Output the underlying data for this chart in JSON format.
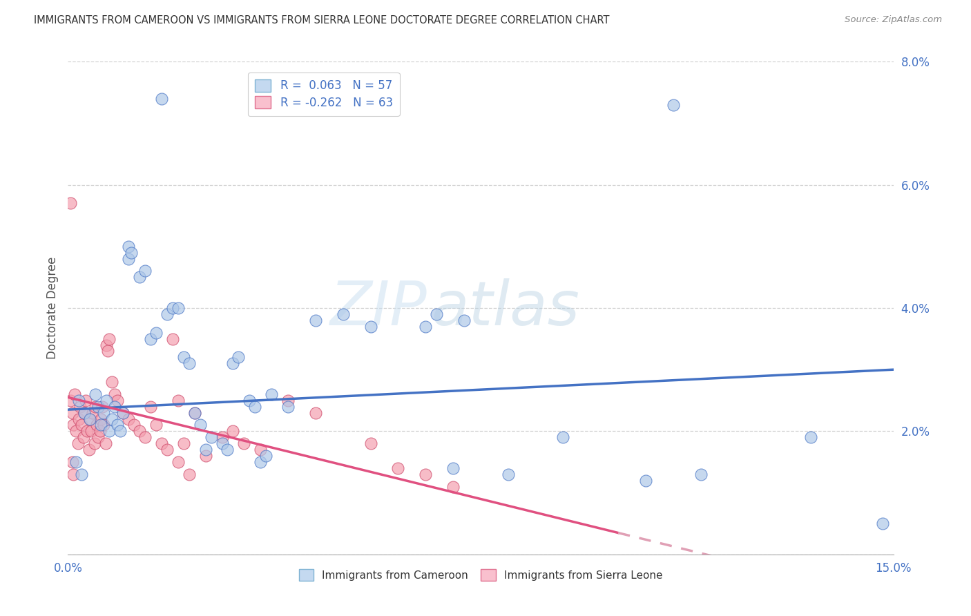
{
  "title": "IMMIGRANTS FROM CAMEROON VS IMMIGRANTS FROM SIERRA LEONE DOCTORATE DEGREE CORRELATION CHART",
  "source": "Source: ZipAtlas.com",
  "ylabel": "Doctorate Degree",
  "xlim": [
    0,
    15
  ],
  "ylim": [
    0,
    8
  ],
  "watermark_zip": "ZIP",
  "watermark_atlas": "atlas",
  "cameroon_line_color": "#4472c4",
  "sierra_leone_line_color": "#e05080",
  "grid_color": "#d0d0d0",
  "axis_label_color": "#4472c4",
  "background_color": "#ffffff",
  "cameroon_dot_fill": "#aec8e8",
  "cameroon_dot_edge": "#4472c4",
  "sierra_leone_dot_fill": "#f4a0b0",
  "sierra_leone_dot_edge": "#cc4466",
  "cameroon_scatter": [
    [
      0.2,
      2.5
    ],
    [
      0.3,
      2.3
    ],
    [
      0.4,
      2.2
    ],
    [
      0.5,
      2.6
    ],
    [
      0.55,
      2.4
    ],
    [
      0.6,
      2.1
    ],
    [
      0.65,
      2.3
    ],
    [
      0.7,
      2.5
    ],
    [
      0.75,
      2.0
    ],
    [
      0.8,
      2.2
    ],
    [
      0.85,
      2.4
    ],
    [
      0.9,
      2.1
    ],
    [
      0.95,
      2.0
    ],
    [
      1.0,
      2.3
    ],
    [
      1.1,
      5.0
    ],
    [
      1.1,
      4.8
    ],
    [
      1.15,
      4.9
    ],
    [
      1.3,
      4.5
    ],
    [
      1.4,
      4.6
    ],
    [
      1.5,
      3.5
    ],
    [
      1.6,
      3.6
    ],
    [
      1.8,
      3.9
    ],
    [
      1.9,
      4.0
    ],
    [
      2.0,
      4.0
    ],
    [
      2.1,
      3.2
    ],
    [
      2.2,
      3.1
    ],
    [
      2.3,
      2.3
    ],
    [
      2.4,
      2.1
    ],
    [
      2.5,
      1.7
    ],
    [
      2.6,
      1.9
    ],
    [
      2.8,
      1.8
    ],
    [
      2.9,
      1.7
    ],
    [
      3.0,
      3.1
    ],
    [
      3.1,
      3.2
    ],
    [
      3.3,
      2.5
    ],
    [
      3.4,
      2.4
    ],
    [
      3.7,
      2.6
    ],
    [
      4.5,
      3.8
    ],
    [
      5.0,
      3.9
    ],
    [
      5.5,
      3.7
    ],
    [
      6.5,
      3.7
    ],
    [
      6.7,
      3.9
    ],
    [
      7.0,
      1.4
    ],
    [
      7.2,
      3.8
    ],
    [
      8.0,
      1.3
    ],
    [
      9.0,
      1.9
    ],
    [
      10.5,
      1.2
    ],
    [
      11.5,
      1.3
    ],
    [
      1.7,
      7.4
    ],
    [
      11.0,
      7.3
    ],
    [
      13.5,
      1.9
    ],
    [
      14.8,
      0.5
    ],
    [
      3.5,
      1.5
    ],
    [
      3.6,
      1.6
    ],
    [
      4.0,
      2.4
    ],
    [
      0.15,
      1.5
    ],
    [
      0.25,
      1.3
    ]
  ],
  "sierra_leone_scatter": [
    [
      0.05,
      2.5
    ],
    [
      0.08,
      2.3
    ],
    [
      0.1,
      2.1
    ],
    [
      0.12,
      2.6
    ],
    [
      0.15,
      2.0
    ],
    [
      0.18,
      1.8
    ],
    [
      0.2,
      2.2
    ],
    [
      0.22,
      2.4
    ],
    [
      0.25,
      2.1
    ],
    [
      0.28,
      1.9
    ],
    [
      0.3,
      2.3
    ],
    [
      0.32,
      2.5
    ],
    [
      0.35,
      2.0
    ],
    [
      0.38,
      1.7
    ],
    [
      0.4,
      2.2
    ],
    [
      0.42,
      2.0
    ],
    [
      0.45,
      2.3
    ],
    [
      0.48,
      1.8
    ],
    [
      0.5,
      2.4
    ],
    [
      0.52,
      2.1
    ],
    [
      0.55,
      1.9
    ],
    [
      0.58,
      2.0
    ],
    [
      0.6,
      2.2
    ],
    [
      0.62,
      2.4
    ],
    [
      0.65,
      2.1
    ],
    [
      0.68,
      1.8
    ],
    [
      0.7,
      3.4
    ],
    [
      0.72,
      3.3
    ],
    [
      0.75,
      3.5
    ],
    [
      0.8,
      2.8
    ],
    [
      0.85,
      2.6
    ],
    [
      0.9,
      2.5
    ],
    [
      1.0,
      2.3
    ],
    [
      1.1,
      2.2
    ],
    [
      1.2,
      2.1
    ],
    [
      1.3,
      2.0
    ],
    [
      1.4,
      1.9
    ],
    [
      1.5,
      2.4
    ],
    [
      1.6,
      2.1
    ],
    [
      1.7,
      1.8
    ],
    [
      1.8,
      1.7
    ],
    [
      1.9,
      3.5
    ],
    [
      2.0,
      2.5
    ],
    [
      2.1,
      1.8
    ],
    [
      2.3,
      2.3
    ],
    [
      2.5,
      1.6
    ],
    [
      2.8,
      1.9
    ],
    [
      3.0,
      2.0
    ],
    [
      3.2,
      1.8
    ],
    [
      3.5,
      1.7
    ],
    [
      4.0,
      2.5
    ],
    [
      4.5,
      2.3
    ],
    [
      5.5,
      1.8
    ],
    [
      6.0,
      1.4
    ],
    [
      6.5,
      1.3
    ],
    [
      7.0,
      1.1
    ],
    [
      0.05,
      5.7
    ],
    [
      0.08,
      1.5
    ],
    [
      0.1,
      1.3
    ],
    [
      2.0,
      1.5
    ],
    [
      2.2,
      1.3
    ]
  ]
}
